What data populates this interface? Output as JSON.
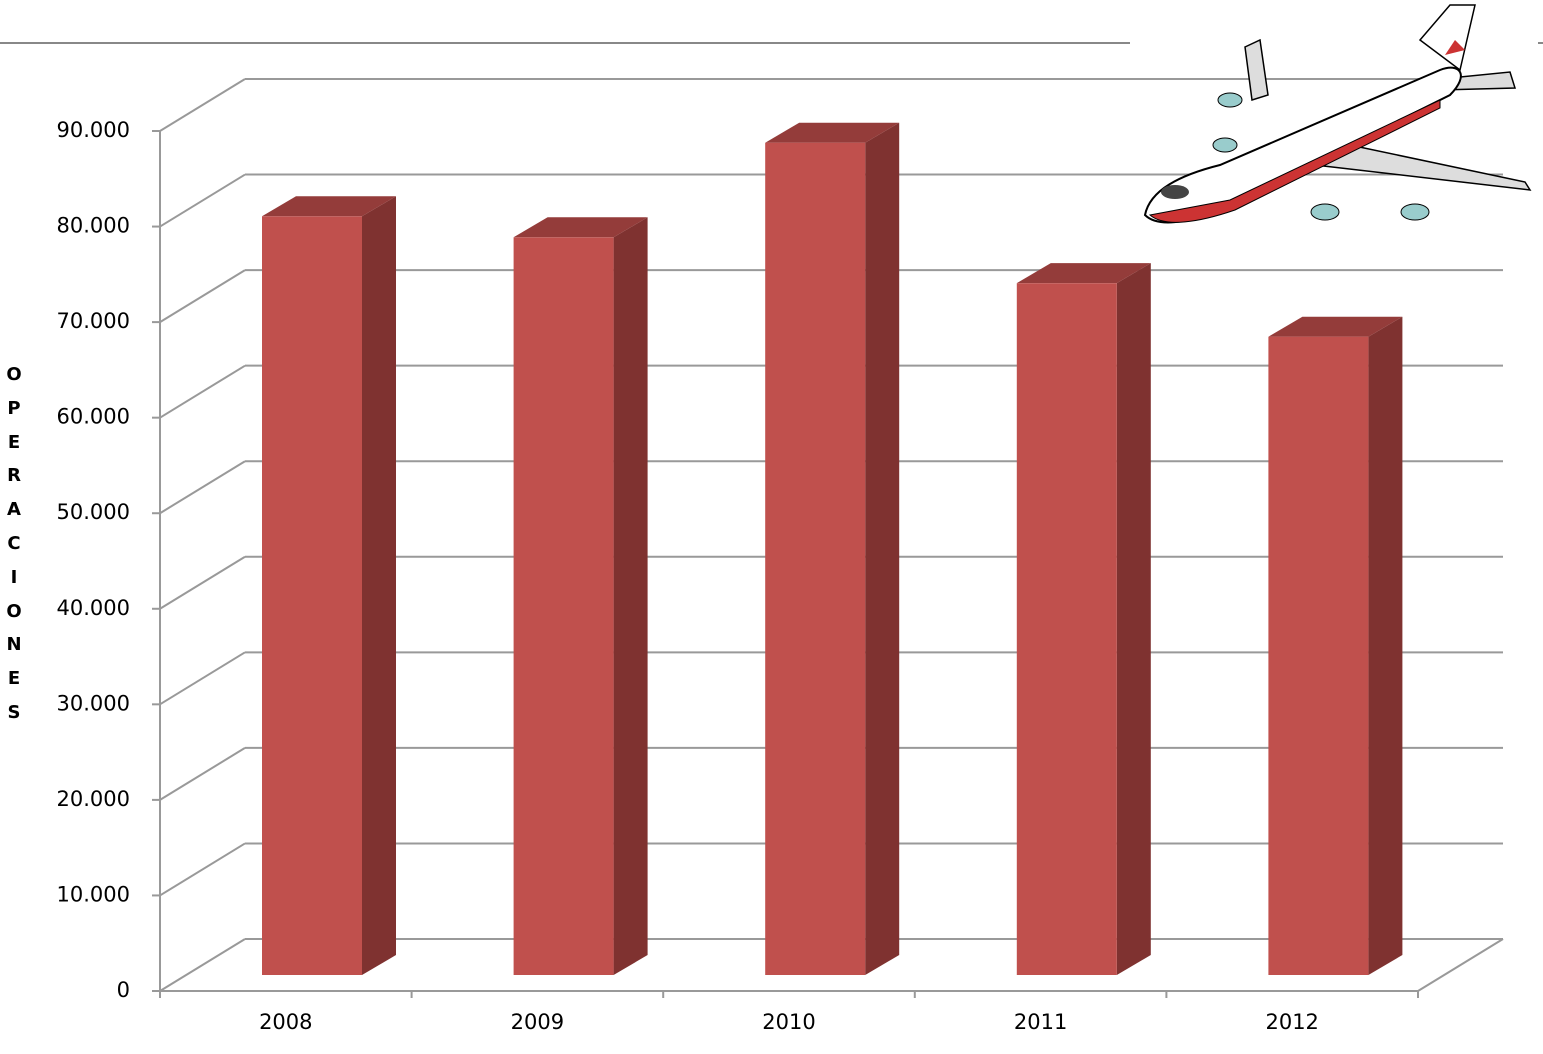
{
  "chart_data": {
    "type": "bar3d",
    "y_label": "OPERACIONES",
    "categories": [
      "2008",
      "2009",
      "2010",
      "2011",
      "2012"
    ],
    "values": [
      79400,
      77200,
      87100,
      72400,
      66800
    ],
    "color": "#c0504d",
    "ylim": [
      0,
      90000
    ],
    "yticks": [
      0,
      {
        "value": 10000,
        "label": "10.000"
      },
      {
        "value": 20000,
        "label": "20.000"
      },
      {
        "value": 30000,
        "label": "30.000"
      },
      {
        "value": 40000,
        "label": "40.000"
      },
      {
        "value": 50000,
        "label": "50.000"
      },
      {
        "value": 60000,
        "label": "60.000"
      },
      {
        "value": 70000,
        "label": "70.000"
      },
      {
        "value": 80000,
        "label": "80.000"
      },
      {
        "value": 90000,
        "label": "90.000"
      }
    ],
    "grid": true
  }
}
